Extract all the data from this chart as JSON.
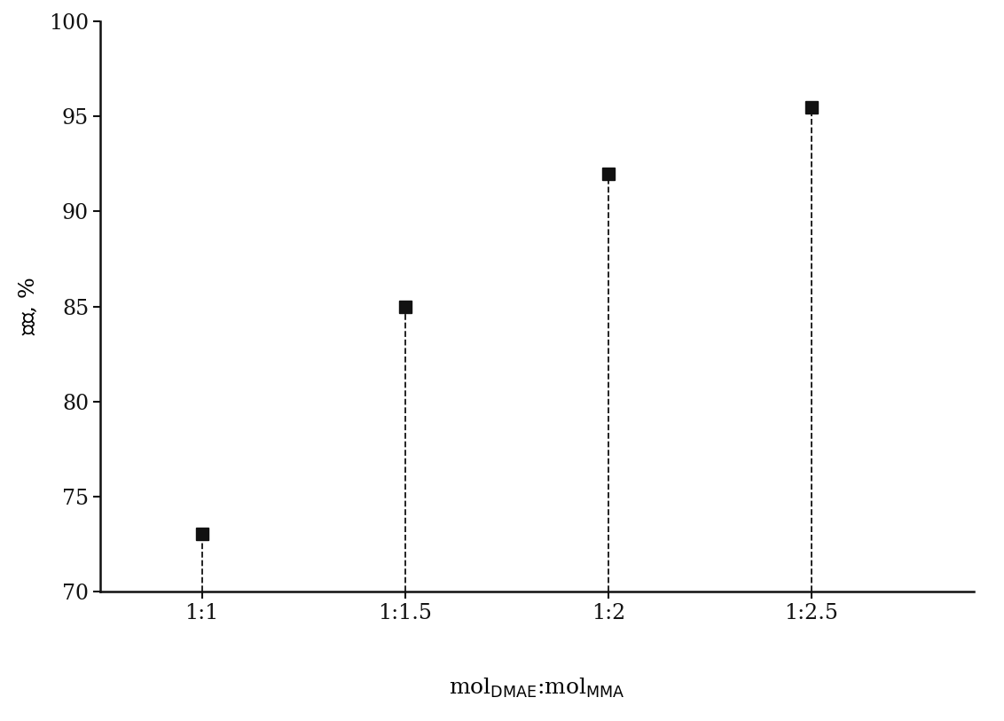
{
  "x_labels": [
    "1:1",
    "1:1.5",
    "1:2",
    "1:2.5"
  ],
  "x_positions": [
    1,
    2,
    3,
    4
  ],
  "y_values": [
    73,
    85,
    92,
    95.5
  ],
  "ylim": [
    70,
    100
  ],
  "yticks": [
    70,
    75,
    80,
    85,
    90,
    95,
    100
  ],
  "marker": "s",
  "marker_color": "#111111",
  "marker_size": 10,
  "line_style": "--",
  "line_color": "#111111",
  "background_color": "#ffffff",
  "spine_color": "#111111",
  "tick_label_fontsize": 17,
  "axis_label_fontsize": 18
}
